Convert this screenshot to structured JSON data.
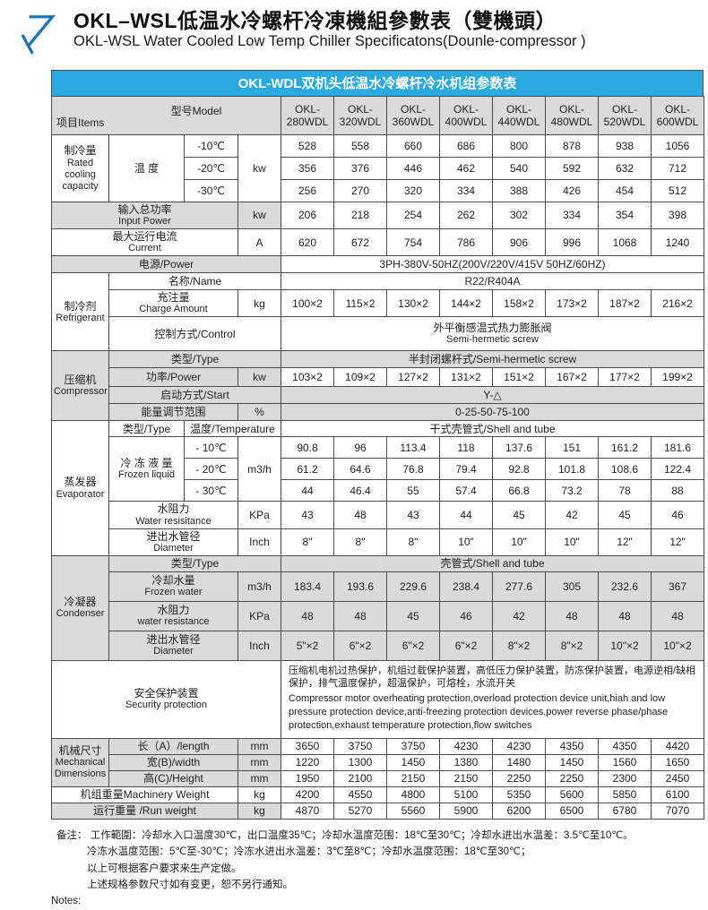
{
  "colors": {
    "accent_blue": "#29abe2",
    "row_gray": "#dadada"
  },
  "header": {
    "title_zh": "OKL–WSL低温水冷螺杆冷凍機組參數表（雙機頭）",
    "title_en": "OKL-WSL Water Cooled Low Temp Chiller Specificatons(Dounle-compressor )"
  },
  "table": {
    "caption": "OKL-WDL双机头低温水冷螺杆冷水机组参数表",
    "corner_items": "项目Items",
    "corner_model": "型号Model",
    "models": [
      "OKL-280WDL",
      "OKL-320WDL",
      "OKL-360WDL",
      "OKL-400WDL",
      "OKL-440WDL",
      "OKL-480WDL",
      "OKL-520WDL",
      "OKL-600WDL"
    ]
  },
  "cooling": {
    "label_zh": "制冷量",
    "label_en": "Rated cooling capacity",
    "temp_header": "温 度",
    "unit": "kw",
    "temps": [
      "-10℃",
      "-20℃",
      "-30℃"
    ],
    "values_minus10": [
      528,
      558,
      660,
      686,
      800,
      878,
      938,
      1056
    ],
    "values_minus20": [
      356,
      376,
      446,
      462,
      540,
      592,
      632,
      712
    ],
    "values_minus30": [
      256,
      270,
      320,
      334,
      388,
      426,
      454,
      512
    ]
  },
  "input_power": {
    "label_zh": "输入总功率",
    "label_en": "Input Power",
    "unit": "kw",
    "values": [
      206,
      218,
      254,
      262,
      302,
      334,
      354,
      398
    ]
  },
  "current": {
    "label_zh": "最大运行电流",
    "label_en": "Current",
    "unit": "A",
    "values": [
      620,
      672,
      754,
      786,
      906,
      996,
      1068,
      1240
    ]
  },
  "power_supply": {
    "label": "电源/Power",
    "value": "3PH-380V-50HZ(200V/220V/415V  50HZ/60HZ)"
  },
  "refrigerant": {
    "label_zh": "制冷剂",
    "label_en": "Refrigerant",
    "name_label": "名称/Name",
    "name_value": "R22/R404A",
    "charge_label_zh": "充注量",
    "charge_label_en": "Charge Amount",
    "charge_unit": "kg",
    "charge_values": [
      "100×2",
      "115×2",
      "130×2",
      "144×2",
      "158×2",
      "173×2",
      "187×2",
      "216×2"
    ],
    "control_label": "控制方式/Control",
    "control_value_zh": "外平衡感温式热力膨胀阀",
    "control_value_en": "Semi-hermetic screw"
  },
  "compressor": {
    "label_zh": "压缩机",
    "label_en": "Compressor",
    "type_label": "类型/Type",
    "type_value": "半封闭螺杆式/Semi-hermetic screw",
    "power_label": "功率/Power",
    "power_unit": "kw",
    "power_values": [
      "103×2",
      "109×2",
      "127×2",
      "131×2",
      "151×2",
      "167×2",
      "177×2",
      "199×2"
    ],
    "start_label": "启动方式/Start",
    "start_value": "Y-△",
    "range_label": "能量调节范围",
    "range_unit": "%",
    "range_value": "0-25-50-75-100"
  },
  "evaporator": {
    "label_zh": "蒸发器",
    "label_en": "Evaporator",
    "type_label": "类型/Type",
    "temp_label": "温度/Temperature",
    "type_value": "干式壳管式/Shell and tube",
    "liquid_label_zh": "冷 冻 液 量",
    "liquid_label_en": "Frozen liquid",
    "liquid_unit": "m3/h",
    "temps": [
      "- 10℃",
      "- 20℃",
      "- 30℃"
    ],
    "values_minus10": [
      90.8,
      96,
      113.4,
      118,
      137.6,
      151,
      161.2,
      181.6
    ],
    "values_minus20": [
      61.2,
      64.6,
      76.8,
      79.4,
      92.8,
      101.8,
      108.6,
      122.4
    ],
    "values_minus30": [
      44,
      46.4,
      55,
      57.4,
      66.8,
      73.2,
      78,
      88
    ],
    "resistance_label_zh": "水阻力",
    "resistance_label_en": "Water resisitance",
    "resistance_unit": "KPa",
    "resistance_values": [
      43,
      48,
      43,
      44,
      45,
      42,
      45,
      46
    ],
    "diameter_label_zh": "进出水管径",
    "diameter_label_en": "Diameter",
    "diameter_unit": "Inch",
    "diameter_values": [
      "8\"",
      "8\"",
      "8\"",
      "10\"",
      "10\"",
      "10\"",
      "12\"",
      "12\""
    ]
  },
  "condenser": {
    "label_zh": "冷凝器",
    "label_en": "Condenser",
    "type_label": "类型/Type",
    "type_value": "壳管式/Shell and tube",
    "water_label_zh": "冷却水量",
    "water_label_en": "Frozen water",
    "water_unit": "m3/h",
    "water_values": [
      183.4,
      193.6,
      229.6,
      238.4,
      277.6,
      305,
      232.6,
      367
    ],
    "resistance_label_zh": "水阻力",
    "resistance_label_en": "water resistance",
    "resistance_unit": "KPa",
    "resistance_values": [
      48,
      48,
      45,
      46,
      42,
      48,
      48,
      48
    ],
    "diameter_label_zh": "进出水管径",
    "diameter_label_en": "Diameter",
    "diameter_unit": "Inch",
    "diameter_values": [
      "5\"×2",
      "6\"×2",
      "6\"×2",
      "6\"×2",
      "8\"×2",
      "8\"×2",
      "10\"×2",
      "10\"×2"
    ]
  },
  "security": {
    "label_zh": "安全保护装置",
    "label_en": "Security protection",
    "text_zh": "压缩机电机过热保护，机组过载保护装置，高低压力保护装置，防冻保护装置，电源逆相/缺相保护，排气温度保护，超温保护，可熔栓，水流开关",
    "text_en": "Compressor motor overheating protection,overload protection device unit,hiah and low pressure protection device,anti-freezing protection devices,power reverse phase/phase protection,exhaust temperature protection,flow switches"
  },
  "dimensions": {
    "label_zh": "机械尺寸",
    "label_en": "Mechanical Dimensions",
    "length_label": "长（A）/length",
    "length_unit": "mm",
    "length_values": [
      3650,
      3750,
      3750,
      4230,
      4230,
      4350,
      4350,
      4420
    ],
    "width_label": "宽(B)/width",
    "width_unit": "mm",
    "width_values": [
      1220,
      1300,
      1450,
      1380,
      1480,
      1450,
      1560,
      1650
    ],
    "height_label": "高(C)/Height",
    "height_unit": "mm",
    "height_values": [
      1950,
      2100,
      2150,
      2150,
      2250,
      2250,
      2300,
      2450
    ]
  },
  "machinery_weight": {
    "label": "机组重量Machinery Weight",
    "unit": "kg",
    "values": [
      4200,
      4550,
      4800,
      5100,
      5350,
      5600,
      5850,
      6100
    ]
  },
  "run_weight": {
    "label": "运行重量 /Run weight",
    "unit": "kg",
    "values": [
      4870,
      5270,
      5560,
      5900,
      6200,
      6500,
      6780,
      7070
    ]
  },
  "notes": {
    "line1": "备注：  工作範圍：冷却水入口温度30℃，出口温度35℃；冷却水温度范围：18℃至30℃；冷却水进出水温差：3.5℃至10℃。",
    "line2": "冷冻水温度范围：5℃至-30℃；冷冻水进出水温差：3℃至8℃；冷却水温度范围：18℃至30℃；",
    "line3": "以上可根据客户要求来生产定做。",
    "line4": "上述规格参数尺寸如有变更，恕不另行通知。",
    "line5": "Notes:"
  }
}
